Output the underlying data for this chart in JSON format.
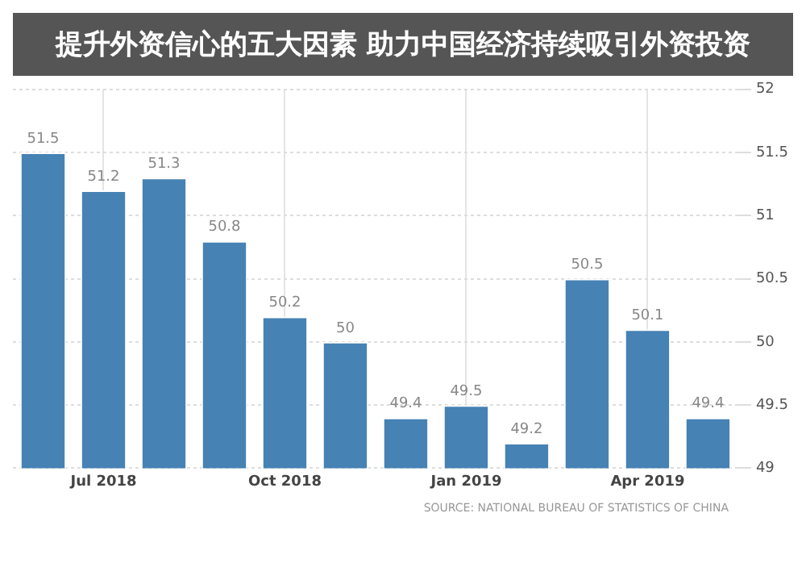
{
  "chart_data": {
    "type": "bar",
    "title": "提升外资信心的五大因素 助力中国经济持续吸引外资投资",
    "categories": [
      null,
      "Jul 2018",
      null,
      null,
      "Oct 2018",
      null,
      null,
      "Jan 2019",
      null,
      null,
      "Apr 2019",
      null
    ],
    "values": [
      51.5,
      51.2,
      51.3,
      50.8,
      50.2,
      50,
      49.4,
      49.5,
      49.2,
      50.5,
      50.1,
      49.4
    ],
    "color": "#4682b4",
    "ylim": [
      49,
      52
    ],
    "yticks": [
      49,
      49.5,
      50,
      50.5,
      51,
      51.5,
      52
    ],
    "grid": true,
    "data_labels": true,
    "annotations": [
      "SOURCE: NATIONAL BUREAU OF STATISTICS OF CHINA"
    ]
  }
}
